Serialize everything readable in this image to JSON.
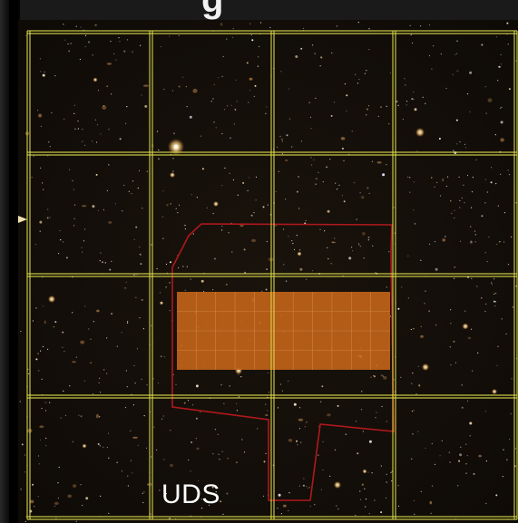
{
  "title_fragment": "g",
  "field_label": "UDS",
  "colors": {
    "grid": "#d8d84a",
    "outline": "#b0181c",
    "filled_region": "#c8661a",
    "background": "#14100c"
  }
}
